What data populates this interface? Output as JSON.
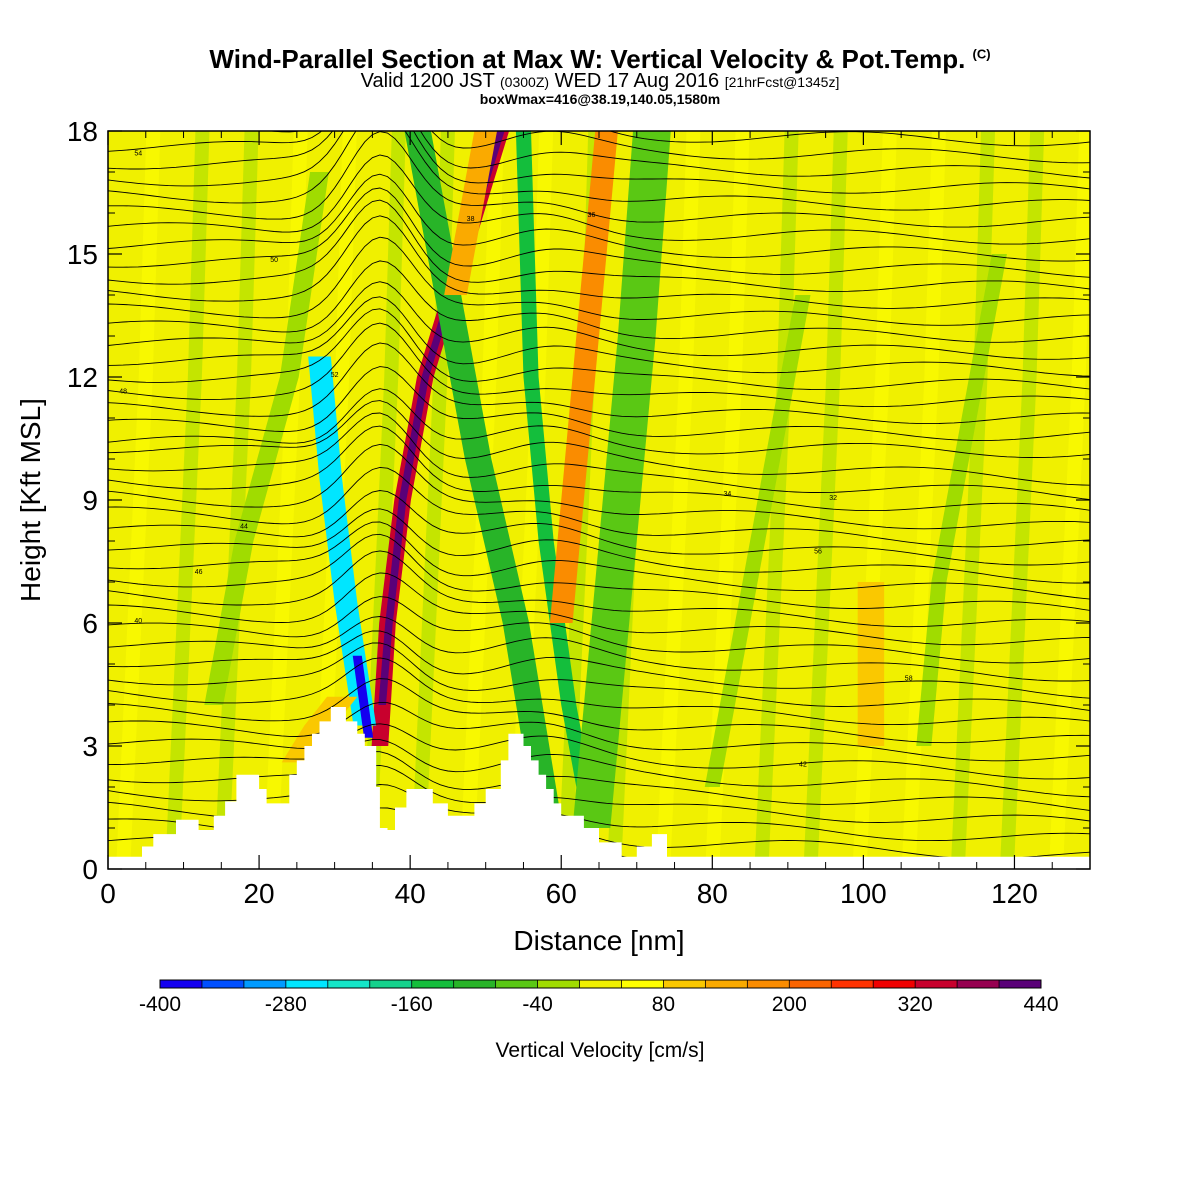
{
  "header": {
    "title": "Wind-Parallel Section at Max W: Vertical Velocity & Pot.Temp.",
    "copyright": "(C)",
    "valid_prefix": "Valid 1200 JST",
    "valid_utc": "(0300Z)",
    "valid_date": "WED 17 Aug 2016",
    "forecast_info": "[21hrFcst@1345z]",
    "box_info": "boxWmax=416@38.19,140.05,1580m"
  },
  "chart_data": {
    "type": "heatmap",
    "xlabel": "Distance [nm]",
    "ylabel": "Height [Kft MSL]",
    "xlim": [
      0,
      130
    ],
    "ylim": [
      0,
      18
    ],
    "x_ticks": [
      "0",
      "20",
      "40",
      "60",
      "80",
      "100",
      "120"
    ],
    "y_ticks": [
      "0",
      "3",
      "6",
      "9",
      "12",
      "15",
      "18"
    ],
    "colorbar": {
      "label": "Vertical Velocity [cm/s]",
      "tick_labels": [
        "-400",
        "-280",
        "-160",
        "-40",
        "80",
        "200",
        "320",
        "440"
      ],
      "levels": [
        -400,
        -360,
        -320,
        -280,
        -240,
        -200,
        -160,
        -120,
        -80,
        -40,
        0,
        40,
        80,
        120,
        160,
        200,
        240,
        280,
        320,
        360,
        400,
        440
      ],
      "colors": [
        "#1400f0",
        "#0050ff",
        "#009bff",
        "#00e6ff",
        "#14e6c8",
        "#14d28c",
        "#14be3c",
        "#28b428",
        "#5ac814",
        "#a0dc00",
        "#f0f000",
        "#ffff00",
        "#fac800",
        "#faaa00",
        "#fa8c00",
        "#fa6400",
        "#ff3200",
        "#f00000",
        "#c8002d",
        "#960050",
        "#5a0078"
      ]
    },
    "terrain": [
      [
        0,
        0.3
      ],
      [
        4.5,
        0.3
      ],
      [
        4.5,
        0.55
      ],
      [
        6,
        0.55
      ],
      [
        6,
        0.85
      ],
      [
        9,
        0.85
      ],
      [
        9,
        1.2
      ],
      [
        12,
        1.2
      ],
      [
        12,
        0.95
      ],
      [
        14,
        0.95
      ],
      [
        14,
        1.3
      ],
      [
        15.5,
        1.3
      ],
      [
        15.5,
        1.65
      ],
      [
        17,
        1.65
      ],
      [
        17,
        2.3
      ],
      [
        20,
        2.3
      ],
      [
        20,
        1.95
      ],
      [
        21,
        1.95
      ],
      [
        21,
        1.6
      ],
      [
        24,
        1.6
      ],
      [
        24,
        2.3
      ],
      [
        25,
        2.3
      ],
      [
        25,
        2.65
      ],
      [
        26,
        2.65
      ],
      [
        26,
        3.0
      ],
      [
        27,
        3.0
      ],
      [
        27,
        3.3
      ],
      [
        28,
        3.3
      ],
      [
        28,
        3.6
      ],
      [
        29.5,
        3.6
      ],
      [
        29.5,
        3.95
      ],
      [
        31.5,
        3.95
      ],
      [
        31.5,
        3.6
      ],
      [
        33,
        3.6
      ],
      [
        33,
        3.3
      ],
      [
        34,
        3.3
      ],
      [
        34,
        3.0
      ],
      [
        35.5,
        3.0
      ],
      [
        35.5,
        2.0
      ],
      [
        36,
        2.0
      ],
      [
        36,
        1.0
      ],
      [
        37,
        1.0
      ],
      [
        37,
        0.95
      ],
      [
        38,
        0.95
      ],
      [
        38,
        1.5
      ],
      [
        39.5,
        1.5
      ],
      [
        39.5,
        1.95
      ],
      [
        43,
        1.95
      ],
      [
        43,
        1.6
      ],
      [
        45,
        1.6
      ],
      [
        45,
        1.3
      ],
      [
        48.5,
        1.3
      ],
      [
        48.5,
        1.6
      ],
      [
        50,
        1.6
      ],
      [
        50,
        1.95
      ],
      [
        52,
        1.95
      ],
      [
        52,
        2.65
      ],
      [
        53,
        2.65
      ],
      [
        53,
        3.3
      ],
      [
        55,
        3.3
      ],
      [
        55,
        3.0
      ],
      [
        56,
        3.0
      ],
      [
        56,
        2.65
      ],
      [
        57,
        2.65
      ],
      [
        57,
        2.3
      ],
      [
        58,
        2.3
      ],
      [
        58,
        1.95
      ],
      [
        59,
        1.95
      ],
      [
        59,
        1.6
      ],
      [
        60,
        1.6
      ],
      [
        60,
        1.3
      ],
      [
        63,
        1.3
      ],
      [
        63,
        1.0
      ],
      [
        65,
        1.0
      ],
      [
        65,
        0.65
      ],
      [
        68,
        0.65
      ],
      [
        68,
        0.3
      ],
      [
        70,
        0.3
      ],
      [
        70,
        0.55
      ],
      [
        72,
        0.55
      ],
      [
        72,
        0.85
      ],
      [
        74,
        0.85
      ],
      [
        74,
        0.3
      ],
      [
        130,
        0.3
      ],
      [
        130,
        0
      ],
      [
        0,
        0
      ]
    ],
    "bands": [
      {
        "x": [
          36,
          37,
          39,
          42,
          47,
          52
        ],
        "y": [
          3.0,
          6,
          9,
          12,
          15,
          18
        ],
        "w": 2.2,
        "value": 320
      },
      {
        "x": [
          36.3,
          37.2,
          39,
          42,
          47,
          52
        ],
        "y": [
          4.0,
          6,
          9,
          12,
          15,
          18
        ],
        "w": 1.0,
        "value": 400
      },
      {
        "x": [
          34,
          31.5,
          29.5,
          28
        ],
        "y": [
          3.5,
          6.5,
          9.5,
          12.5
        ],
        "w": 3.0,
        "value": -280
      },
      {
        "x": [
          34.5,
          33
        ],
        "y": [
          3.2,
          5.2
        ],
        "w": 1.2,
        "value": -400
      },
      {
        "x": [
          58,
          54,
          49,
          45,
          41
        ],
        "y": [
          1.5,
          6,
          10,
          14,
          18
        ],
        "w": 3.5,
        "value": -120
      },
      {
        "x": [
          64,
          61,
          58,
          56,
          55
        ],
        "y": [
          1.0,
          4,
          8,
          12,
          18
        ],
        "w": 2.0,
        "value": -160
      },
      {
        "x": [
          64,
          66,
          68,
          70,
          72
        ],
        "y": [
          1.0,
          5,
          9,
          13,
          18
        ],
        "w": 5.0,
        "value": -80
      },
      {
        "x": [
          60,
          62,
          64,
          66
        ],
        "y": [
          6,
          10,
          14,
          18
        ],
        "w": 3.0,
        "value": 160
      },
      {
        "x": [
          46,
          48,
          50
        ],
        "y": [
          14,
          16,
          18
        ],
        "w": 3.0,
        "value": 120
      },
      {
        "x": [
          25,
          28,
          31
        ],
        "y": [
          2.6,
          3.5,
          4.2
        ],
        "w": 4.0,
        "value": 80
      },
      {
        "x": [
          101,
          101,
          101
        ],
        "y": [
          3,
          5,
          7
        ],
        "w": 3.5,
        "value": 80
      },
      {
        "x": [
          14,
          18,
          24,
          28
        ],
        "y": [
          4,
          8,
          12,
          17
        ],
        "w": 2.5,
        "value": -40
      },
      {
        "x": [
          80,
          84,
          88,
          92
        ],
        "y": [
          2,
          6,
          10,
          14
        ],
        "w": 2.0,
        "value": -40
      },
      {
        "x": [
          108,
          110,
          114,
          118
        ],
        "y": [
          3,
          7,
          11,
          15
        ],
        "w": 2.0,
        "value": -40
      }
    ],
    "isentrope_labels": [
      "54",
      "50",
      "52",
      "48",
      "44",
      "46",
      "40",
      "38",
      "36",
      "34",
      "32",
      "56",
      "58",
      "42"
    ]
  }
}
